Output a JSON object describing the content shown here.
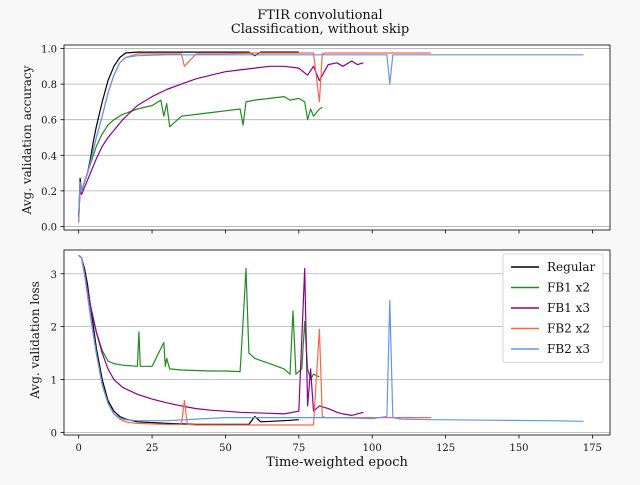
{
  "chart_data": [
    {
      "type": "line",
      "title": "FTIR convolutional",
      "subtitle": "Classification, without skip",
      "xlabel": "",
      "ylabel": "Avg. validation accuracy",
      "xlim": [
        -5,
        181
      ],
      "ylim": [
        -0.02,
        1.02
      ],
      "yticks": [
        0.0,
        0.2,
        0.4,
        0.6,
        0.8,
        1.0
      ],
      "ytick_labels": [
        "0.0",
        "0.2",
        "0.4",
        "0.6",
        "0.8",
        "1.0"
      ],
      "xticks": [
        0,
        25,
        50,
        75,
        100,
        125,
        150,
        175
      ],
      "show_xtick_labels": false,
      "grid": "horizontal",
      "legend": "none",
      "series": [
        {
          "name": "Regular",
          "color": "#000000",
          "x": [
            0,
            0.5,
            1,
            2,
            3,
            4,
            5,
            6,
            8,
            10,
            12,
            14,
            16,
            20,
            30,
            45,
            58,
            60,
            62,
            70,
            75
          ],
          "y": [
            0.05,
            0.27,
            0.2,
            0.25,
            0.3,
            0.38,
            0.48,
            0.56,
            0.7,
            0.82,
            0.9,
            0.95,
            0.975,
            0.98,
            0.98,
            0.98,
            0.98,
            0.96,
            0.98,
            0.98,
            0.98
          ]
        },
        {
          "name": "FB1 x2",
          "color": "#228b22",
          "x": [
            0,
            0.5,
            1,
            2,
            3,
            4,
            6,
            8,
            10,
            12,
            15,
            20,
            25,
            28,
            29,
            30,
            31,
            35,
            40,
            45,
            50,
            55,
            56,
            57,
            60,
            65,
            70,
            72,
            75,
            77,
            78,
            79,
            80,
            82,
            83
          ],
          "y": [
            0.05,
            0.23,
            0.2,
            0.25,
            0.3,
            0.35,
            0.45,
            0.52,
            0.57,
            0.6,
            0.63,
            0.66,
            0.68,
            0.71,
            0.62,
            0.69,
            0.56,
            0.62,
            0.63,
            0.64,
            0.65,
            0.66,
            0.57,
            0.7,
            0.71,
            0.72,
            0.73,
            0.71,
            0.72,
            0.7,
            0.6,
            0.66,
            0.62,
            0.66,
            0.67
          ]
        },
        {
          "name": "FB1 x3",
          "color": "#8b008b",
          "x": [
            0,
            0.5,
            1,
            2,
            3,
            4,
            6,
            8,
            10,
            12,
            15,
            20,
            25,
            30,
            35,
            40,
            45,
            50,
            55,
            60,
            65,
            70,
            75,
            78,
            80,
            82,
            85,
            88,
            90,
            93,
            95,
            97
          ],
          "y": [
            0.05,
            0.2,
            0.18,
            0.22,
            0.26,
            0.3,
            0.38,
            0.45,
            0.5,
            0.54,
            0.6,
            0.68,
            0.73,
            0.77,
            0.8,
            0.83,
            0.85,
            0.87,
            0.88,
            0.89,
            0.9,
            0.9,
            0.89,
            0.85,
            0.9,
            0.82,
            0.91,
            0.92,
            0.9,
            0.93,
            0.91,
            0.92
          ]
        },
        {
          "name": "FB2 x2",
          "color": "#ff6347",
          "x": [
            0,
            0.5,
            1,
            2,
            3,
            4,
            6,
            8,
            10,
            12,
            14,
            16,
            18,
            20,
            25,
            30,
            35,
            36,
            40,
            50,
            60,
            70,
            80,
            82,
            83,
            84,
            90,
            100,
            110,
            120
          ],
          "y": [
            0.02,
            0.24,
            0.2,
            0.25,
            0.3,
            0.36,
            0.5,
            0.62,
            0.75,
            0.85,
            0.92,
            0.95,
            0.96,
            0.97,
            0.97,
            0.97,
            0.97,
            0.9,
            0.97,
            0.97,
            0.975,
            0.975,
            0.975,
            0.7,
            0.97,
            0.975,
            0.975,
            0.975,
            0.975,
            0.975
          ]
        },
        {
          "name": "FB2 x3",
          "color": "#6495ed",
          "x": [
            0,
            0.5,
            1,
            2,
            3,
            4,
            6,
            8,
            10,
            12,
            14,
            16,
            20,
            30,
            40,
            60,
            80,
            100,
            105,
            106,
            107,
            110,
            120,
            140,
            160,
            172
          ],
          "y": [
            0.03,
            0.25,
            0.2,
            0.25,
            0.3,
            0.36,
            0.5,
            0.62,
            0.75,
            0.85,
            0.92,
            0.95,
            0.96,
            0.965,
            0.965,
            0.965,
            0.965,
            0.965,
            0.965,
            0.8,
            0.965,
            0.965,
            0.965,
            0.965,
            0.965,
            0.965
          ]
        }
      ]
    },
    {
      "type": "line",
      "title": "",
      "xlabel": "Time-weighted epoch",
      "ylabel": "Avg. validation loss",
      "xlim": [
        -5,
        181
      ],
      "ylim": [
        -0.05,
        3.45
      ],
      "yticks": [
        0,
        1,
        2,
        3
      ],
      "ytick_labels": [
        "0",
        "1",
        "2",
        "3"
      ],
      "xticks": [
        0,
        25,
        50,
        75,
        100,
        125,
        150,
        175
      ],
      "xtick_labels": [
        "0",
        "25",
        "50",
        "75",
        "100",
        "125",
        "150",
        "175"
      ],
      "show_xtick_labels": true,
      "grid": "horizontal",
      "legend": "top-right",
      "series": [
        {
          "name": "Regular",
          "color": "#000000",
          "x": [
            0,
            1,
            2,
            3,
            4,
            5,
            6,
            8,
            10,
            12,
            14,
            16,
            20,
            30,
            40,
            50,
            58,
            60,
            62,
            70,
            75
          ],
          "y": [
            3.35,
            3.3,
            3.1,
            2.8,
            2.4,
            2.0,
            1.6,
            1.0,
            0.6,
            0.4,
            0.3,
            0.25,
            0.2,
            0.17,
            0.15,
            0.15,
            0.15,
            0.3,
            0.2,
            0.22,
            0.24
          ]
        },
        {
          "name": "FB1 x2",
          "color": "#228b22",
          "x": [
            0,
            1,
            2,
            3,
            4,
            6,
            8,
            10,
            12,
            15,
            20,
            20.5,
            21,
            25,
            29,
            29.5,
            30,
            31,
            35,
            40,
            45,
            50,
            55,
            56,
            57,
            58,
            60,
            65,
            70,
            72,
            73,
            74,
            76,
            77,
            78,
            79,
            80,
            82
          ],
          "y": [
            3.35,
            3.3,
            3.0,
            2.7,
            2.4,
            1.9,
            1.55,
            1.35,
            1.3,
            1.27,
            1.25,
            1.9,
            1.25,
            1.25,
            1.7,
            1.25,
            1.4,
            1.2,
            1.18,
            1.17,
            1.16,
            1.16,
            1.15,
            2.1,
            3.1,
            1.5,
            1.4,
            1.3,
            1.2,
            1.1,
            2.3,
            1.1,
            1.2,
            2.1,
            1.2,
            1.0,
            1.1,
            1.05
          ]
        },
        {
          "name": "FB1 x3",
          "color": "#8b008b",
          "x": [
            0,
            1,
            2,
            3,
            4,
            6,
            8,
            10,
            12,
            15,
            20,
            25,
            30,
            35,
            40,
            45,
            50,
            55,
            60,
            65,
            70,
            75,
            77,
            78,
            79,
            80,
            82,
            85,
            88,
            90,
            93,
            97
          ],
          "y": [
            3.35,
            3.3,
            3.0,
            2.7,
            2.4,
            1.9,
            1.5,
            1.2,
            1.0,
            0.85,
            0.72,
            0.63,
            0.56,
            0.5,
            0.45,
            0.42,
            0.4,
            0.38,
            0.37,
            0.36,
            0.35,
            0.4,
            3.1,
            0.5,
            1.2,
            0.4,
            0.5,
            0.45,
            0.38,
            0.35,
            0.32,
            0.38
          ]
        },
        {
          "name": "FB2 x2",
          "color": "#ff6347",
          "x": [
            0,
            1,
            2,
            3,
            4,
            6,
            8,
            10,
            12,
            14,
            16,
            18,
            20,
            25,
            30,
            35,
            36,
            37,
            40,
            50,
            60,
            70,
            80,
            82,
            83,
            84,
            90,
            100,
            110,
            120
          ],
          "y": [
            3.35,
            3.3,
            3.0,
            2.6,
            2.2,
            1.5,
            0.9,
            0.55,
            0.35,
            0.25,
            0.2,
            0.18,
            0.17,
            0.16,
            0.15,
            0.15,
            0.6,
            0.15,
            0.14,
            0.14,
            0.14,
            0.14,
            0.14,
            1.95,
            0.3,
            0.28,
            0.28,
            0.28,
            0.28,
            0.28
          ]
        },
        {
          "name": "FB2 x3",
          "color": "#6495ed",
          "x": [
            0,
            1,
            2,
            3,
            4,
            6,
            8,
            10,
            12,
            14,
            16,
            18,
            20,
            25,
            30,
            40,
            50,
            60,
            70,
            80,
            90,
            100,
            105,
            106,
            107,
            110,
            120,
            140,
            160,
            172
          ],
          "y": [
            3.35,
            3.3,
            3.0,
            2.6,
            2.2,
            1.5,
            0.9,
            0.55,
            0.35,
            0.27,
            0.24,
            0.23,
            0.22,
            0.22,
            0.22,
            0.25,
            0.28,
            0.28,
            0.28,
            0.28,
            0.28,
            0.26,
            0.3,
            2.5,
            0.28,
            0.25,
            0.24,
            0.23,
            0.22,
            0.21
          ]
        }
      ]
    }
  ]
}
